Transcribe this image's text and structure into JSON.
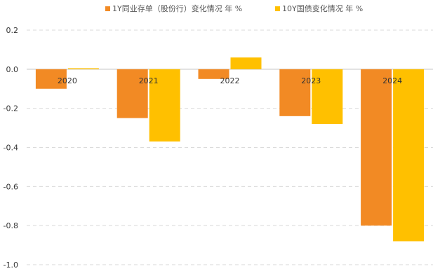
{
  "chart_data": {
    "type": "bar",
    "title": "",
    "xlabel": "",
    "ylabel": "",
    "categories": [
      "2020",
      "2021",
      "2022",
      "2023",
      "2024"
    ],
    "series": [
      {
        "name": "1Y同业存单（股份行）变化情况 年 %",
        "color": "#F28A24",
        "values": [
          -0.1,
          -0.25,
          -0.05,
          -0.24,
          -0.8
        ]
      },
      {
        "name": "10Y国债变化情况 年 %",
        "color": "#FFC000",
        "values": [
          0.005,
          -0.37,
          0.06,
          -0.28,
          -0.88
        ]
      }
    ],
    "ylim": [
      -1.0,
      0.2
    ],
    "yticks": [
      "0.2",
      "0.0",
      "-0.2",
      "-0.4",
      "-0.6",
      "-0.8",
      "-1.0"
    ],
    "grid": true,
    "legend_position": "top-center"
  }
}
